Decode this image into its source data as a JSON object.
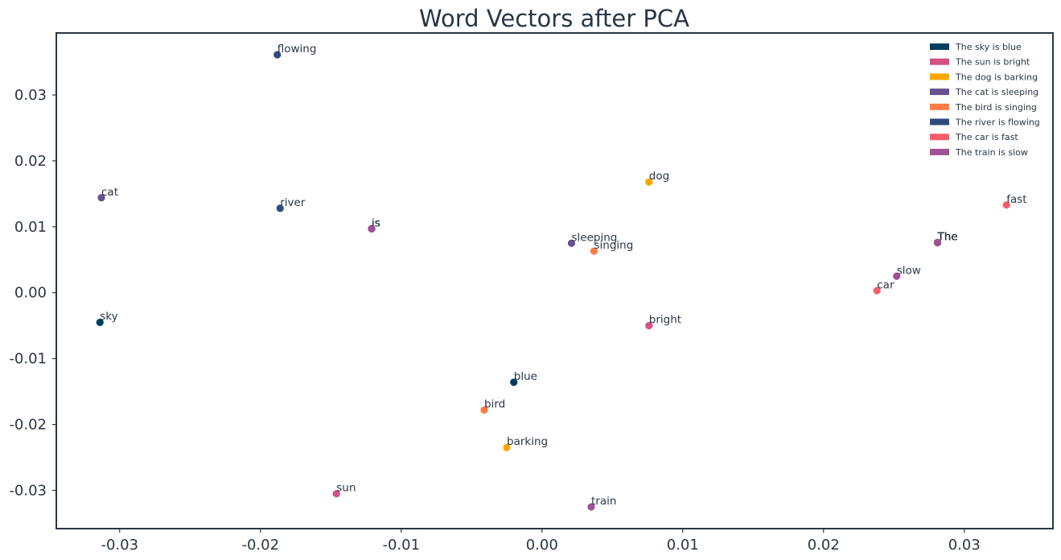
{
  "chart_data": {
    "type": "scatter",
    "title": "Word Vectors after PCA",
    "xlabel": "",
    "ylabel": "",
    "xlim": [
      -0.0345,
      0.0363
    ],
    "ylim": [
      -0.0358,
      0.0394
    ],
    "xticks": [
      -0.03,
      -0.02,
      -0.01,
      0.0,
      0.01,
      0.02,
      0.03
    ],
    "xtick_labels": [
      "-0.03",
      "-0.02",
      "-0.01",
      "0.00",
      "0.01",
      "0.02",
      "0.03"
    ],
    "yticks": [
      0.03,
      0.02,
      0.01,
      0.0,
      -0.01,
      -0.02,
      -0.03
    ],
    "ytick_labels": [
      "0.03",
      "0.02",
      "0.01",
      "0.00",
      "-0.01",
      "-0.02",
      "-0.03"
    ],
    "grid": false,
    "legend_position": "top-right",
    "series": [
      {
        "name": "The sky is blue",
        "color": "#003f5c",
        "points": [
          {
            "word": "The",
            "x": 0.0281,
            "y": 0.0076
          },
          {
            "word": "sky",
            "x": -0.0314,
            "y": -0.0045
          },
          {
            "word": "is",
            "x": -0.0121,
            "y": 0.0097
          },
          {
            "word": "blue",
            "x": -0.002,
            "y": -0.0136
          }
        ]
      },
      {
        "name": "The sun is bright",
        "color": "#d45087",
        "points": [
          {
            "word": "The",
            "x": 0.0281,
            "y": 0.0076
          },
          {
            "word": "sun",
            "x": -0.0146,
            "y": -0.0305
          },
          {
            "word": "is",
            "x": -0.0121,
            "y": 0.0097
          },
          {
            "word": "bright",
            "x": 0.0076,
            "y": -0.005
          }
        ]
      },
      {
        "name": "The dog is barking",
        "color": "#ffa600",
        "points": [
          {
            "word": "The",
            "x": 0.0281,
            "y": 0.0076
          },
          {
            "word": "dog",
            "x": 0.0076,
            "y": 0.0168
          },
          {
            "word": "is",
            "x": -0.0121,
            "y": 0.0097
          },
          {
            "word": "barking",
            "x": -0.0025,
            "y": -0.0235
          }
        ]
      },
      {
        "name": "The cat is sleeping",
        "color": "#665191",
        "points": [
          {
            "word": "The",
            "x": 0.0281,
            "y": 0.0076
          },
          {
            "word": "cat",
            "x": -0.0313,
            "y": 0.0144
          },
          {
            "word": "is",
            "x": -0.0121,
            "y": 0.0097
          },
          {
            "word": "sleeping",
            "x": 0.0021,
            "y": 0.0075
          }
        ]
      },
      {
        "name": "The bird is singing",
        "color": "#ff7c43",
        "points": [
          {
            "word": "The",
            "x": 0.0281,
            "y": 0.0076
          },
          {
            "word": "bird",
            "x": -0.0041,
            "y": -0.0178
          },
          {
            "word": "is",
            "x": -0.0121,
            "y": 0.0097
          },
          {
            "word": "singing",
            "x": 0.0037,
            "y": 0.0063
          }
        ]
      },
      {
        "name": "The river is flowing",
        "color": "#2f4b7c",
        "points": [
          {
            "word": "The",
            "x": 0.0281,
            "y": 0.0076
          },
          {
            "word": "river",
            "x": -0.0186,
            "y": 0.0128
          },
          {
            "word": "is",
            "x": -0.0121,
            "y": 0.0097
          },
          {
            "word": "flowing",
            "x": -0.0188,
            "y": 0.0361
          }
        ]
      },
      {
        "name": "The car is fast",
        "color": "#f95d6a",
        "points": [
          {
            "word": "The",
            "x": 0.0281,
            "y": 0.0076
          },
          {
            "word": "car",
            "x": 0.0238,
            "y": 0.0003
          },
          {
            "word": "is",
            "x": -0.0121,
            "y": 0.0097
          },
          {
            "word": "fast",
            "x": 0.033,
            "y": 0.0133
          }
        ]
      },
      {
        "name": "The train is slow",
        "color": "#a05195",
        "points": [
          {
            "word": "The",
            "x": 0.0281,
            "y": 0.0076
          },
          {
            "word": "train",
            "x": 0.0035,
            "y": -0.0325
          },
          {
            "word": "is",
            "x": -0.0121,
            "y": 0.0097
          },
          {
            "word": "slow",
            "x": 0.0252,
            "y": 0.0025
          }
        ]
      }
    ]
  }
}
